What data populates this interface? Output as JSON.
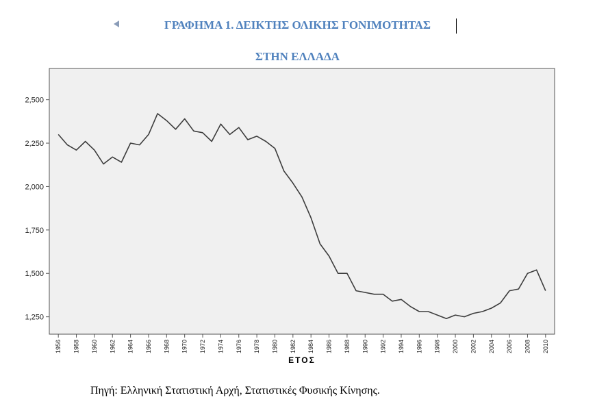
{
  "title_line1": "ΓΡΑΦΗΜΑ 1. ΔΕΙΚΤΗΣ ΟΛΙΚΗΣ ΓΟΝΙΜΟΤΗΤΑΣ",
  "title_line2": "ΣΤΗΝ ΕΛΛΑΔΑ",
  "source_note": "Πηγή: Ελληνική Στατιστική Αρχή, Στατιστικές Φυσικής Κίνησης.",
  "colors": {
    "title": "#4f81bd",
    "plot_bg": "#f0f0f0",
    "line": "#3c3c3c"
  },
  "chart_data": {
    "type": "line",
    "xlabel": "ΕΤΟΣ",
    "ylabel": "",
    "ylim": [
      1.15,
      2.68
    ],
    "xlim": [
      1955,
      2011
    ],
    "grid": false,
    "y_ticks": [
      {
        "value": 1.25,
        "label": "1,250"
      },
      {
        "value": 1.5,
        "label": "1,500"
      },
      {
        "value": 1.75,
        "label": "1,750"
      },
      {
        "value": 2.0,
        "label": "2,000"
      },
      {
        "value": 2.25,
        "label": "2,250"
      },
      {
        "value": 2.5,
        "label": "2,500"
      }
    ],
    "x_ticks": [
      "1956",
      "1958",
      "1960",
      "1962",
      "1964",
      "1966",
      "1968",
      "1970",
      "1972",
      "1974",
      "1976",
      "1978",
      "1980",
      "1982",
      "1984",
      "1986",
      "1988",
      "1990",
      "1992",
      "1994",
      "1996",
      "1998",
      "2000",
      "2002",
      "2004",
      "2006",
      "2008",
      "2010"
    ],
    "x": [
      1956,
      1957,
      1958,
      1959,
      1960,
      1961,
      1962,
      1963,
      1964,
      1965,
      1966,
      1967,
      1968,
      1969,
      1970,
      1971,
      1972,
      1973,
      1974,
      1975,
      1976,
      1977,
      1978,
      1979,
      1980,
      1981,
      1982,
      1983,
      1984,
      1985,
      1986,
      1987,
      1988,
      1989,
      1990,
      1991,
      1992,
      1993,
      1994,
      1995,
      1996,
      1997,
      1998,
      1999,
      2000,
      2001,
      2002,
      2003,
      2004,
      2005,
      2006,
      2007,
      2008,
      2009,
      2010
    ],
    "values": [
      2.3,
      2.24,
      2.21,
      2.26,
      2.21,
      2.13,
      2.17,
      2.14,
      2.25,
      2.24,
      2.3,
      2.42,
      2.38,
      2.33,
      2.39,
      2.32,
      2.31,
      2.26,
      2.36,
      2.3,
      2.34,
      2.27,
      2.29,
      2.26,
      2.22,
      2.09,
      2.02,
      1.94,
      1.82,
      1.67,
      1.6,
      1.5,
      1.5,
      1.4,
      1.39,
      1.38,
      1.38,
      1.34,
      1.35,
      1.31,
      1.28,
      1.28,
      1.26,
      1.24,
      1.26,
      1.25,
      1.27,
      1.28,
      1.3,
      1.33,
      1.4,
      1.41,
      1.5,
      1.52,
      1.4
    ]
  }
}
